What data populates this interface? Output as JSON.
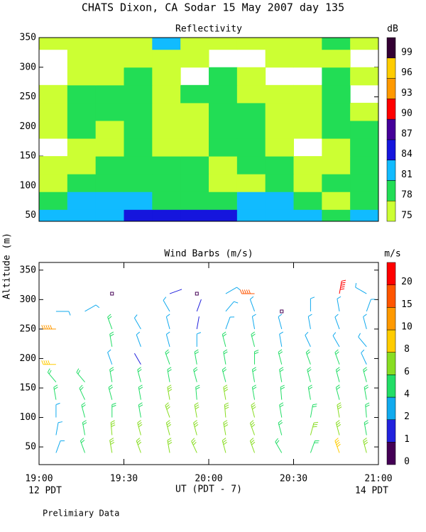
{
  "title": "CHATS Dixon, CA  Sodar  15 May 2007  day 135",
  "y_axis_label": "Altitude (m)",
  "x_axis_label": "UT  (PDT - 7)",
  "left_note": "12 PDT",
  "right_note": "14 PDT",
  "footer": "Prelimiary Data",
  "chart_data": [
    {
      "type": "contour",
      "title": "Reflectivity",
      "unit_label": "dB",
      "x_edges": [
        19,
        19.1667,
        19.3333,
        19.5,
        19.6667,
        19.8333,
        20,
        20.1667,
        20.3333,
        20.5,
        20.6667,
        20.8333,
        21
      ],
      "y_edges": [
        40,
        60,
        90,
        120,
        150,
        180,
        210,
        240,
        270,
        300,
        330,
        350
      ],
      "z": [
        [
          81,
          81,
          81,
          84,
          84,
          84,
          84,
          81,
          81,
          81,
          78,
          81
        ],
        [
          78,
          81,
          81,
          81,
          78,
          78,
          78,
          81,
          81,
          78,
          75,
          78
        ],
        [
          75,
          78,
          78,
          78,
          78,
          78,
          75,
          75,
          78,
          75,
          78,
          78
        ],
        [
          75,
          75,
          78,
          78,
          78,
          78,
          75,
          78,
          78,
          75,
          75,
          78
        ],
        [
          74,
          75,
          75,
          78,
          75,
          75,
          78,
          78,
          75,
          74,
          75,
          78
        ],
        [
          75,
          78,
          75,
          78,
          75,
          75,
          78,
          78,
          75,
          75,
          78,
          78
        ],
        [
          75,
          78,
          78,
          78,
          75,
          75,
          78,
          78,
          75,
          75,
          78,
          75
        ],
        [
          75,
          78,
          78,
          78,
          75,
          78,
          78,
          75,
          75,
          75,
          78,
          74
        ],
        [
          74,
          75,
          75,
          78,
          75,
          74,
          78,
          75,
          74,
          74,
          78,
          75
        ],
        [
          74,
          75,
          75,
          75,
          75,
          75,
          74,
          74,
          75,
          75,
          75,
          74
        ],
        [
          75,
          75,
          75,
          75,
          81,
          75,
          75,
          75,
          75,
          75,
          78,
          75
        ]
      ],
      "levels": [
        75,
        78,
        81,
        84,
        87,
        90,
        93,
        96,
        99
      ],
      "colors": [
        "#ccff33",
        "#22dd55",
        "#11bbff",
        "#1515dd",
        "#440099",
        "#ff0000",
        "#ff9900",
        "#ffcc00",
        "#330033"
      ],
      "xlim": [
        19,
        21
      ],
      "xticks": [
        19,
        19.5,
        20,
        20.5,
        21
      ],
      "ylim": [
        40,
        350
      ],
      "yticks": [
        50,
        100,
        150,
        200,
        250,
        300,
        350
      ]
    },
    {
      "type": "barbs",
      "title": "Wind Barbs (m/s)",
      "unit_label": "m/s",
      "x": [
        19.1,
        19.27,
        19.43,
        19.6,
        19.77,
        19.93,
        20.1,
        20.27,
        20.43,
        20.6,
        20.77,
        20.93
      ],
      "altitudes": [
        40,
        70,
        100,
        130,
        160,
        190,
        220,
        250,
        280,
        310
      ],
      "speed": [
        [
          3,
          3,
          3,
          4,
          5,
          8,
          null,
          10,
          2,
          null
        ],
        [
          4,
          4,
          5,
          5,
          4,
          null,
          null,
          null,
          2,
          null
        ],
        [
          6,
          6,
          5,
          5,
          4,
          3,
          4,
          4,
          null,
          0
        ],
        [
          6,
          6,
          5,
          5,
          5,
          1,
          2,
          2,
          null,
          null
        ],
        [
          6,
          6,
          6,
          6,
          5,
          4,
          3,
          3,
          2,
          1
        ],
        [
          7,
          6,
          6,
          5,
          5,
          4,
          3,
          1,
          1,
          0
        ],
        [
          7,
          6,
          6,
          6,
          5,
          5,
          4,
          3,
          2,
          2
        ],
        [
          7,
          6,
          6,
          5,
          5,
          5,
          4,
          3,
          3,
          15
        ],
        [
          4,
          5,
          5,
          5,
          5,
          4,
          3,
          3,
          0,
          null
        ],
        [
          4,
          6,
          5,
          5,
          4,
          4,
          3,
          3,
          2,
          null
        ],
        [
          8,
          6,
          6,
          5,
          5,
          4,
          3,
          3,
          2,
          20
        ],
        [
          6,
          5,
          5,
          5,
          4,
          3,
          3,
          2,
          2,
          3
        ]
      ],
      "direction": [
        [
          20,
          10,
          0,
          350,
          320,
          270,
          null,
          270,
          90,
          null
        ],
        [
          340,
          350,
          345,
          335,
          320,
          null,
          null,
          null,
          60,
          null
        ],
        [
          350,
          355,
          0,
          345,
          350,
          340,
          350,
          340,
          null,
          90
        ],
        [
          340,
          345,
          350,
          350,
          345,
          330,
          340,
          330,
          null,
          null
        ],
        [
          350,
          345,
          340,
          350,
          350,
          340,
          345,
          345,
          330,
          70
        ],
        [
          335,
          345,
          350,
          355,
          345,
          350,
          0,
          10,
          20,
          270
        ],
        [
          345,
          350,
          355,
          350,
          345,
          350,
          345,
          20,
          40,
          60
        ],
        [
          340,
          340,
          345,
          350,
          350,
          0,
          345,
          350,
          340,
          270
        ],
        [
          330,
          345,
          350,
          355,
          350,
          345,
          350,
          345,
          0,
          null
        ],
        [
          20,
          15,
          10,
          350,
          345,
          340,
          335,
          350,
          0,
          null
        ],
        [
          340,
          345,
          350,
          345,
          345,
          340,
          330,
          340,
          350,
          10
        ],
        [
          345,
          350,
          355,
          350,
          345,
          335,
          320,
          345,
          20,
          300
        ]
      ],
      "levels": [
        0,
        1,
        2,
        4,
        6,
        8,
        10,
        15,
        20
      ],
      "colors": [
        "#440055",
        "#2222dd",
        "#11aaee",
        "#22dd66",
        "#88dd22",
        "#ffcc00",
        "#ff9900",
        "#ff5500",
        "#ff0000"
      ],
      "xlim": [
        19,
        21
      ],
      "xticks": [
        {
          "value": 19,
          "label": "19:00"
        },
        {
          "value": 19.5,
          "label": "19:30"
        },
        {
          "value": 20,
          "label": "20:00"
        },
        {
          "value": 20.5,
          "label": "20:30"
        },
        {
          "value": 21,
          "label": "21:00"
        }
      ],
      "ylim": [
        20,
        363
      ],
      "yticks": [
        50,
        100,
        150,
        200,
        250,
        300,
        350
      ]
    }
  ]
}
